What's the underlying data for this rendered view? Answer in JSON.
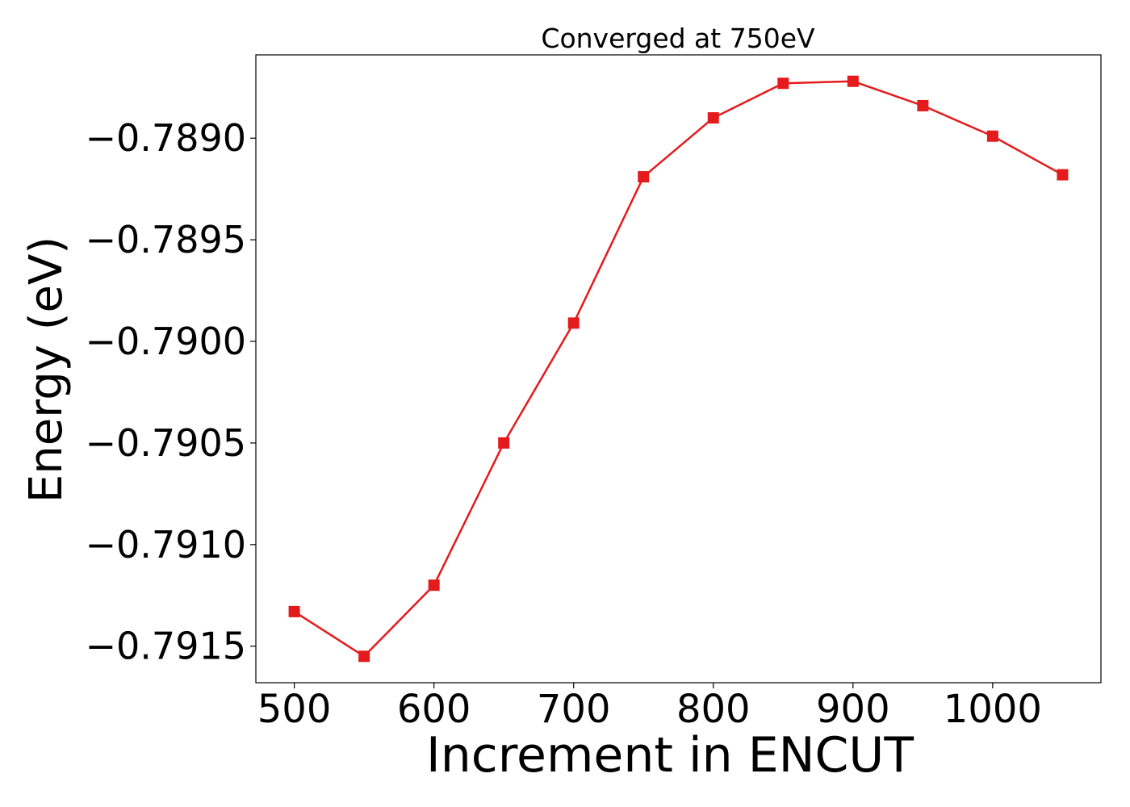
{
  "chart_data": {
    "type": "line",
    "title": "Converged at 750eV",
    "xlabel": "Increment in ENCUT",
    "ylabel": "Energy (eV)",
    "x": [
      500,
      550,
      600,
      650,
      700,
      750,
      800,
      850,
      900,
      950,
      1000,
      1050
    ],
    "series": [
      {
        "values": [
          -0.79133,
          -0.79155,
          -0.7912,
          -0.7905,
          -0.78991,
          -0.78919,
          -0.7889,
          -0.78873,
          -0.78872,
          -0.78884,
          -0.78899,
          -0.78918
        ],
        "color": "#e41a1c",
        "marker": "square"
      }
    ],
    "xlim": [
      472.5,
      1077.5
    ],
    "ylim": [
      -0.79168,
      -0.78859
    ],
    "xticks": [
      500,
      600,
      700,
      800,
      900,
      1000
    ],
    "xtick_labels": [
      "500",
      "600",
      "700",
      "800",
      "900",
      "1000"
    ],
    "yticks": [
      -0.7915,
      -0.791,
      -0.7905,
      -0.79,
      -0.7895,
      -0.789
    ],
    "ytick_labels": [
      "−0.7915",
      "−0.7910",
      "−0.7905",
      "−0.7900",
      "−0.7895",
      "−0.7890"
    ],
    "grid": false,
    "legend": false
  }
}
